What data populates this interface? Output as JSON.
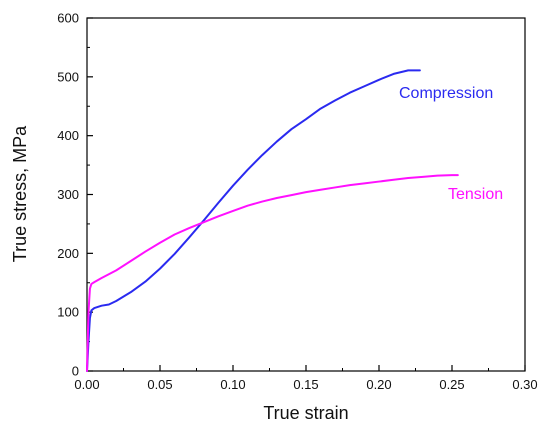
{
  "chart_data": {
    "type": "line",
    "title": "",
    "xlabel": "True strain",
    "ylabel": "True stress, MPa",
    "xlim": [
      0.0,
      0.3
    ],
    "ylim": [
      0,
      600
    ],
    "x_ticks": [
      "0.00",
      "0.05",
      "0.10",
      "0.15",
      "0.20",
      "0.25",
      "0.30"
    ],
    "y_ticks": [
      "0",
      "100",
      "200",
      "300",
      "400",
      "500",
      "600"
    ],
    "grid": false,
    "legend": "none",
    "series": [
      {
        "name": "Compression",
        "color": "#2a2af0",
        "points": [
          [
            0.0,
            0
          ],
          [
            0.001,
            50
          ],
          [
            0.002,
            90
          ],
          [
            0.003,
            103
          ],
          [
            0.005,
            107
          ],
          [
            0.01,
            111
          ],
          [
            0.015,
            113
          ],
          [
            0.02,
            119
          ],
          [
            0.03,
            134
          ],
          [
            0.04,
            152
          ],
          [
            0.05,
            174
          ],
          [
            0.06,
            199
          ],
          [
            0.07,
            227
          ],
          [
            0.08,
            256
          ],
          [
            0.09,
            286
          ],
          [
            0.1,
            315
          ],
          [
            0.11,
            342
          ],
          [
            0.12,
            367
          ],
          [
            0.13,
            390
          ],
          [
            0.14,
            411
          ],
          [
            0.15,
            428
          ],
          [
            0.16,
            446
          ],
          [
            0.17,
            460
          ],
          [
            0.18,
            473
          ],
          [
            0.19,
            484
          ],
          [
            0.2,
            495
          ],
          [
            0.21,
            505
          ],
          [
            0.22,
            511
          ],
          [
            0.228,
            511
          ]
        ]
      },
      {
        "name": "Tension",
        "color": "#ff10ff",
        "points": [
          [
            0.0,
            0
          ],
          [
            0.001,
            100
          ],
          [
            0.002,
            140
          ],
          [
            0.003,
            148
          ],
          [
            0.005,
            151
          ],
          [
            0.01,
            158
          ],
          [
            0.02,
            171
          ],
          [
            0.03,
            187
          ],
          [
            0.04,
            203
          ],
          [
            0.05,
            218
          ],
          [
            0.06,
            232
          ],
          [
            0.07,
            243
          ],
          [
            0.08,
            253
          ],
          [
            0.09,
            263
          ],
          [
            0.1,
            272
          ],
          [
            0.11,
            281
          ],
          [
            0.12,
            288
          ],
          [
            0.13,
            294
          ],
          [
            0.14,
            299
          ],
          [
            0.15,
            304
          ],
          [
            0.16,
            308
          ],
          [
            0.17,
            312
          ],
          [
            0.18,
            316
          ],
          [
            0.19,
            319
          ],
          [
            0.2,
            322
          ],
          [
            0.21,
            325
          ],
          [
            0.22,
            328
          ],
          [
            0.23,
            330
          ],
          [
            0.24,
            332
          ],
          [
            0.25,
            333
          ],
          [
            0.254,
            333
          ]
        ]
      }
    ]
  }
}
